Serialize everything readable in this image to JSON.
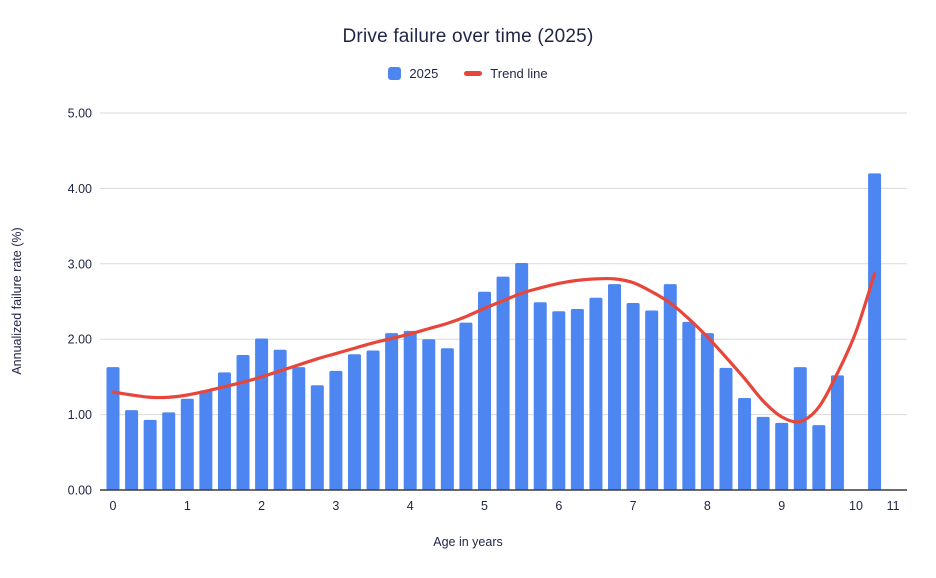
{
  "chart_data": {
    "type": "bar",
    "subtype": "combo-bar-with-trend-line",
    "title": "Drive failure over time (2025)",
    "xlabel": "Age in years",
    "ylabel": "Annualized failure rate (%)",
    "ylim": [
      0,
      5
    ],
    "y_ticks": [
      {
        "value": 0,
        "label": "0.00"
      },
      {
        "value": 1,
        "label": "1.00"
      },
      {
        "value": 2,
        "label": "2.00"
      },
      {
        "value": 3,
        "label": "3.00"
      },
      {
        "value": 4,
        "label": "4.00"
      },
      {
        "value": 5,
        "label": "5.00"
      }
    ],
    "x_ticks": [
      {
        "label": "0",
        "slot": 0
      },
      {
        "label": "1",
        "slot": 4
      },
      {
        "label": "2",
        "slot": 8
      },
      {
        "label": "3",
        "slot": 12
      },
      {
        "label": "4",
        "slot": 16
      },
      {
        "label": "5",
        "slot": 20
      },
      {
        "label": "6",
        "slot": 24
      },
      {
        "label": "7",
        "slot": 28
      },
      {
        "label": "8",
        "slot": 32
      },
      {
        "label": "9",
        "slot": 36
      },
      {
        "label": "10",
        "slot": 40
      },
      {
        "label": "11",
        "slot": 42
      }
    ],
    "legend": [
      {
        "label": "2025",
        "marker": "square",
        "color": "#4d86f0"
      },
      {
        "label": "Trend line",
        "marker": "line",
        "color": "#e8463b"
      }
    ],
    "grid": true,
    "legend_position": "top-center",
    "series": [
      {
        "name": "2025",
        "type": "bar",
        "color": "#4d86f0",
        "x": [
          0,
          0.25,
          0.5,
          0.75,
          1,
          1.25,
          1.5,
          1.75,
          2,
          2.25,
          2.5,
          2.75,
          3,
          3.25,
          3.5,
          3.75,
          4,
          4.25,
          4.5,
          4.75,
          5,
          5.25,
          5.5,
          5.75,
          6,
          6.25,
          6.5,
          6.75,
          7,
          7.25,
          7.5,
          7.75,
          8,
          8.25,
          8.5,
          8.75,
          9,
          9.25,
          9.5,
          9.75,
          10.25
        ],
        "values": [
          1.63,
          1.06,
          0.93,
          1.03,
          1.21,
          1.32,
          1.56,
          1.79,
          2.01,
          1.86,
          1.63,
          1.39,
          1.58,
          1.8,
          1.85,
          2.08,
          2.11,
          2.0,
          1.88,
          2.22,
          2.63,
          2.83,
          3.01,
          2.49,
          2.37,
          2.4,
          2.55,
          2.73,
          2.48,
          2.38,
          2.73,
          2.23,
          2.08,
          1.62,
          1.22,
          0.97,
          0.89,
          1.63,
          0.86,
          1.52,
          4.2
        ]
      },
      {
        "name": "Trend line",
        "type": "line",
        "color": "#e8463b",
        "x": [
          0,
          0.25,
          0.5,
          0.75,
          1,
          1.25,
          1.5,
          1.75,
          2,
          2.25,
          2.5,
          2.75,
          3,
          3.25,
          3.5,
          3.75,
          4,
          4.25,
          4.5,
          4.75,
          5,
          5.25,
          5.5,
          5.75,
          6,
          6.25,
          6.5,
          6.75,
          7,
          7.25,
          7.5,
          7.75,
          8,
          8.25,
          8.5,
          8.75,
          9,
          9.25,
          9.5,
          9.75,
          10,
          10.25
        ],
        "values": [
          1.3,
          1.26,
          1.23,
          1.23,
          1.26,
          1.31,
          1.37,
          1.43,
          1.5,
          1.58,
          1.66,
          1.74,
          1.81,
          1.88,
          1.95,
          2.01,
          2.07,
          2.14,
          2.21,
          2.3,
          2.41,
          2.51,
          2.61,
          2.68,
          2.74,
          2.78,
          2.8,
          2.8,
          2.75,
          2.63,
          2.48,
          2.27,
          2.03,
          1.76,
          1.48,
          1.18,
          0.97,
          0.91,
          1.1,
          1.55,
          2.1,
          2.87
        ]
      }
    ],
    "colors": {
      "bar": "#4d86f0",
      "trend": "#e8463b",
      "text": "#1f2445",
      "gridline": "#dadada",
      "axis_line": "#3c3c3c"
    }
  }
}
